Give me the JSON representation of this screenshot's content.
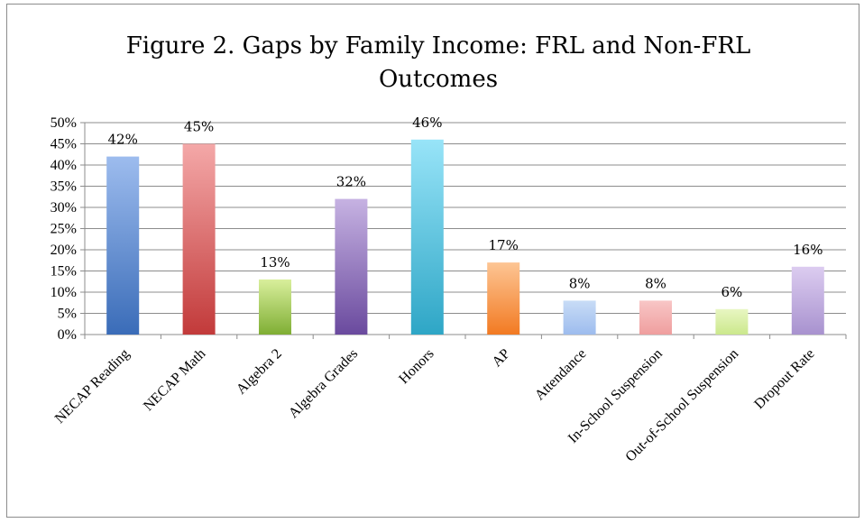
{
  "chart_data": {
    "type": "bar",
    "title_lines": [
      "Figure 2. Gaps by Family Income: FRL and Non-FRL",
      "Outcomes"
    ],
    "categories": [
      "NECAP Reading",
      "NECAP Math",
      "Algebra 2",
      "Algebra Grades",
      "Honors",
      "AP",
      "Attendance",
      "In-School Suspension",
      "Out-of-School Suspension",
      "Dropout Rate"
    ],
    "values": [
      42,
      45,
      13,
      32,
      46,
      17,
      8,
      8,
      6,
      16
    ],
    "value_labels": [
      "42%",
      "45%",
      "13%",
      "32%",
      "46%",
      "17%",
      "8%",
      "8%",
      "6%",
      "16%"
    ],
    "ylim": [
      0,
      50
    ],
    "ytick_step": 5,
    "ytick_labels": [
      "0%",
      "5%",
      "10%",
      "15%",
      "20%",
      "25%",
      "30%",
      "35%",
      "40%",
      "45%",
      "50%"
    ],
    "grid": true,
    "legend": "none",
    "colors": [
      [
        "#9dbcee",
        "#3a6cb8"
      ],
      [
        "#f4a8a8",
        "#c23a3a"
      ],
      [
        "#d9ef9c",
        "#7fae34"
      ],
      [
        "#c6b2e2",
        "#6a4a9e"
      ],
      [
        "#98e4f8",
        "#2ea6c6"
      ],
      [
        "#fdc594",
        "#f27a22"
      ],
      [
        "#c8dcf6",
        "#9dbcee"
      ],
      [
        "#f8c6c6",
        "#ef9e9e"
      ],
      [
        "#e8f6c2",
        "#cbe88c"
      ],
      [
        "#dcccf0",
        "#a892cf"
      ]
    ]
  }
}
